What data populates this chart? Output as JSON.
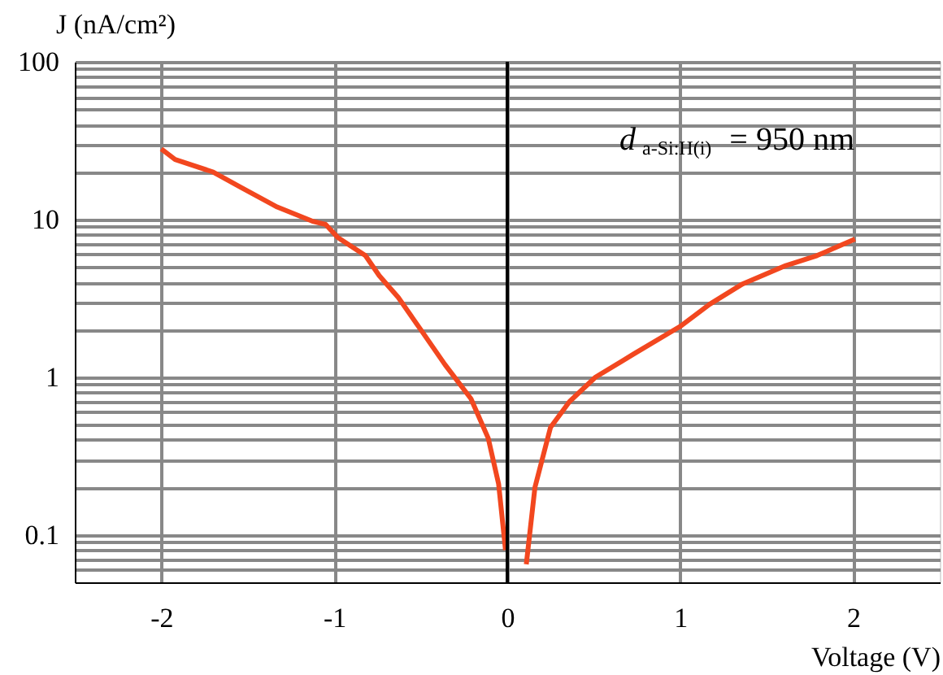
{
  "chart_data": {
    "type": "line",
    "xlabel": "Voltage (V)",
    "ylabel": "J (nA/cm²)",
    "annotations": [
      "d$_{a-Si:H(i)}$ = 950 nm"
    ],
    "series": [
      {
        "color": "#f2471f",
        "x": [
          -2.0,
          -1.92,
          -1.7,
          -1.54,
          -1.33,
          -1.12,
          -1.05,
          -0.98,
          -0.82,
          -0.74,
          -0.63,
          -0.5,
          -0.36,
          -0.21,
          -0.11,
          -0.05,
          -0.01
        ],
        "values": [
          28,
          24,
          20,
          16,
          12,
          9.7,
          9.3,
          7.7,
          5.9,
          4.4,
          3.2,
          2.0,
          1.2,
          0.73,
          0.41,
          0.21,
          0.08
        ]
      },
      {
        "color": "#f2471f",
        "x": [
          0.11,
          0.16,
          0.25,
          0.36,
          0.51,
          0.73,
          1.0,
          1.17,
          1.36,
          1.61,
          1.79,
          2.01
        ],
        "values": [
          0.065,
          0.2,
          0.48,
          0.7,
          1.0,
          1.4,
          2.1,
          2.9,
          3.9,
          5.1,
          5.9,
          7.5
        ]
      }
    ],
    "log": "y",
    "xlim": [
      -2.5,
      2.5
    ],
    "xticks": [
      -2,
      -1,
      0,
      1,
      2
    ],
    "ylim": [
      0.05,
      100
    ],
    "yticks": [
      {
        "value": 0.06,
        "label": null
      },
      {
        "value": 0.07,
        "label": null
      },
      {
        "value": 0.08,
        "label": null
      },
      {
        "value": 0.09,
        "label": null
      },
      0.1,
      {
        "value": 0.2,
        "label": null
      },
      {
        "value": 0.3,
        "label": null
      },
      {
        "value": 0.4,
        "label": null
      },
      {
        "value": 0.5,
        "label": null
      },
      {
        "value": 0.6,
        "label": null
      },
      {
        "value": 0.7,
        "label": null
      },
      {
        "value": 0.8,
        "label": null
      },
      {
        "value": 0.9,
        "label": null
      },
      1,
      {
        "value": 2,
        "label": null
      },
      {
        "value": 3,
        "label": null
      },
      {
        "value": 4,
        "label": null
      },
      {
        "value": 5,
        "label": null
      },
      {
        "value": 6,
        "label": null
      },
      {
        "value": 7,
        "label": null
      },
      {
        "value": 8,
        "label": null
      },
      {
        "value": 9,
        "label": null
      },
      10,
      {
        "value": 20,
        "label": null
      },
      {
        "value": 30,
        "label": null
      },
      {
        "value": 40,
        "label": null
      },
      {
        "value": 50,
        "label": null
      },
      {
        "value": 60,
        "label": null
      },
      {
        "value": 70,
        "label": null
      },
      {
        "value": 80,
        "label": null
      },
      {
        "value": 90,
        "label": null
      },
      100
    ],
    "grid": true,
    "legend": false,
    "marker": "none",
    "line_style": "solid",
    "ref_lines": [
      {
        "axis": "x",
        "value": 0,
        "color": "#000000"
      }
    ]
  }
}
